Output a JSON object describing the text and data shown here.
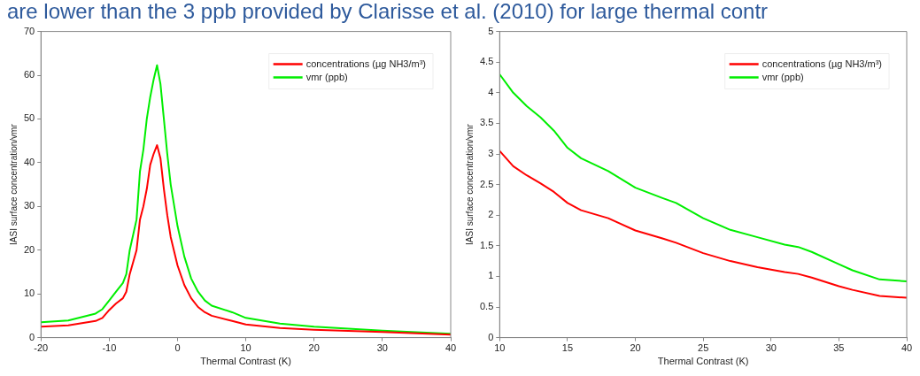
{
  "chart_data": [
    {
      "type": "line",
      "title": "are lower than the 3 ppb provided by Clarisse et al. (2010) for large thermal contr",
      "xlabel": "Thermal Contrast (K)",
      "ylabel": "IASI surface concentration/vmr",
      "xlim": [
        -20,
        40
      ],
      "xticks": [
        -20,
        -10,
        0,
        10,
        20,
        30,
        40
      ],
      "ylim": [
        0,
        70
      ],
      "yticks": [
        0,
        10,
        20,
        30,
        40,
        50,
        60,
        70
      ],
      "legend": "top right",
      "grid": false,
      "series": [
        {
          "name": "concentrations (µg NH3/m³)",
          "color": "#ff0000",
          "x": [
            -20,
            -16,
            -12,
            -11,
            -10,
            -9,
            -8,
            -7.5,
            -7,
            -6,
            -5.5,
            -5,
            -4.5,
            -4,
            -3.5,
            -3,
            -2.5,
            -2,
            -1.5,
            -1,
            0,
            1,
            2,
            3,
            4,
            5,
            8,
            10,
            15,
            20,
            30,
            40
          ],
          "values": [
            2.5,
            2.8,
            3.8,
            4.5,
            6.3,
            7.8,
            9,
            10.5,
            14.5,
            20,
            27,
            30,
            34,
            39.5,
            42,
            44,
            41,
            34,
            28,
            23,
            16.5,
            12,
            9,
            7,
            5.8,
            5,
            3.8,
            3,
            2.2,
            1.8,
            1.3,
            0.7
          ]
        },
        {
          "name": "vmr (ppb)",
          "color": "#00ee00",
          "x": [
            -20,
            -16,
            -12,
            -11,
            -10,
            -9,
            -8,
            -7.5,
            -7,
            -6,
            -5.5,
            -5,
            -4.5,
            -4,
            -3.5,
            -3,
            -2.5,
            -2,
            -1.5,
            -1,
            0,
            1,
            2,
            3,
            4,
            5,
            8,
            10,
            15,
            20,
            30,
            40
          ],
          "values": [
            3.5,
            3.9,
            5.5,
            6.5,
            8.5,
            10.5,
            12.5,
            14.5,
            20,
            27,
            38,
            43,
            50,
            55,
            59,
            62.3,
            58,
            50,
            42,
            35,
            25.5,
            18.5,
            13.5,
            10.5,
            8.5,
            7.3,
            5.8,
            4.5,
            3.2,
            2.5,
            1.6,
            0.9
          ]
        }
      ]
    },
    {
      "type": "line",
      "xlabel": "Thermal Contrast (K)",
      "ylabel": "IASI surface concentration/vmr",
      "xlim": [
        10,
        40
      ],
      "xticks": [
        10,
        15,
        20,
        25,
        30,
        35,
        40
      ],
      "ylim": [
        0,
        5
      ],
      "yticks": [
        0,
        0.5,
        1,
        1.5,
        2,
        2.5,
        3,
        3.5,
        4,
        4.5,
        5
      ],
      "legend": "top right",
      "grid": false,
      "series": [
        {
          "name": "concentrations (µg NH3/m³)",
          "color": "#ff0000",
          "x": [
            10,
            11,
            12,
            13,
            14,
            15,
            16,
            18,
            20,
            22,
            23,
            25,
            27,
            29,
            31,
            32,
            33,
            35,
            36,
            38,
            40
          ],
          "values": [
            3.05,
            2.8,
            2.65,
            2.52,
            2.38,
            2.2,
            2.08,
            1.95,
            1.75,
            1.62,
            1.55,
            1.38,
            1.25,
            1.15,
            1.07,
            1.04,
            0.98,
            0.84,
            0.78,
            0.68,
            0.65
          ]
        },
        {
          "name": "vmr (ppb)",
          "color": "#00ee00",
          "x": [
            10,
            11,
            12,
            13,
            14,
            15,
            16,
            18,
            20,
            22,
            23,
            25,
            27,
            29,
            31,
            32,
            33,
            35,
            36,
            38,
            40
          ],
          "values": [
            4.3,
            4.0,
            3.78,
            3.6,
            3.38,
            3.1,
            2.93,
            2.72,
            2.45,
            2.28,
            2.2,
            1.95,
            1.76,
            1.64,
            1.52,
            1.48,
            1.4,
            1.2,
            1.1,
            0.95,
            0.92
          ]
        }
      ]
    }
  ]
}
